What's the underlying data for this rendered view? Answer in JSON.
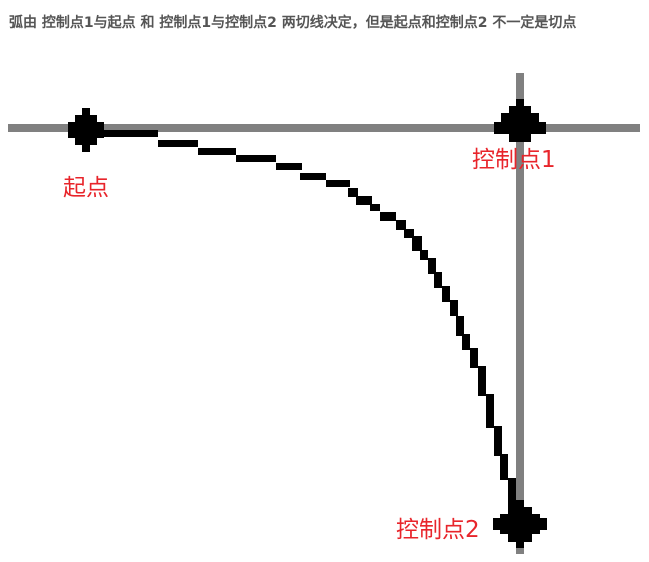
{
  "caption": "弧由 控制点1与起点 和 控制点1与控制点2 两切线决定，但是起点和控制点2 不一定是切点",
  "labels": {
    "start": "起点",
    "control1": "控制点1",
    "control2": "控制点2"
  },
  "colors": {
    "caption": "#555555",
    "label": "#e8252b",
    "tangent_line": "#808080",
    "curve": "#000000",
    "point_marker": "#000000",
    "background": "#ffffff"
  }
}
